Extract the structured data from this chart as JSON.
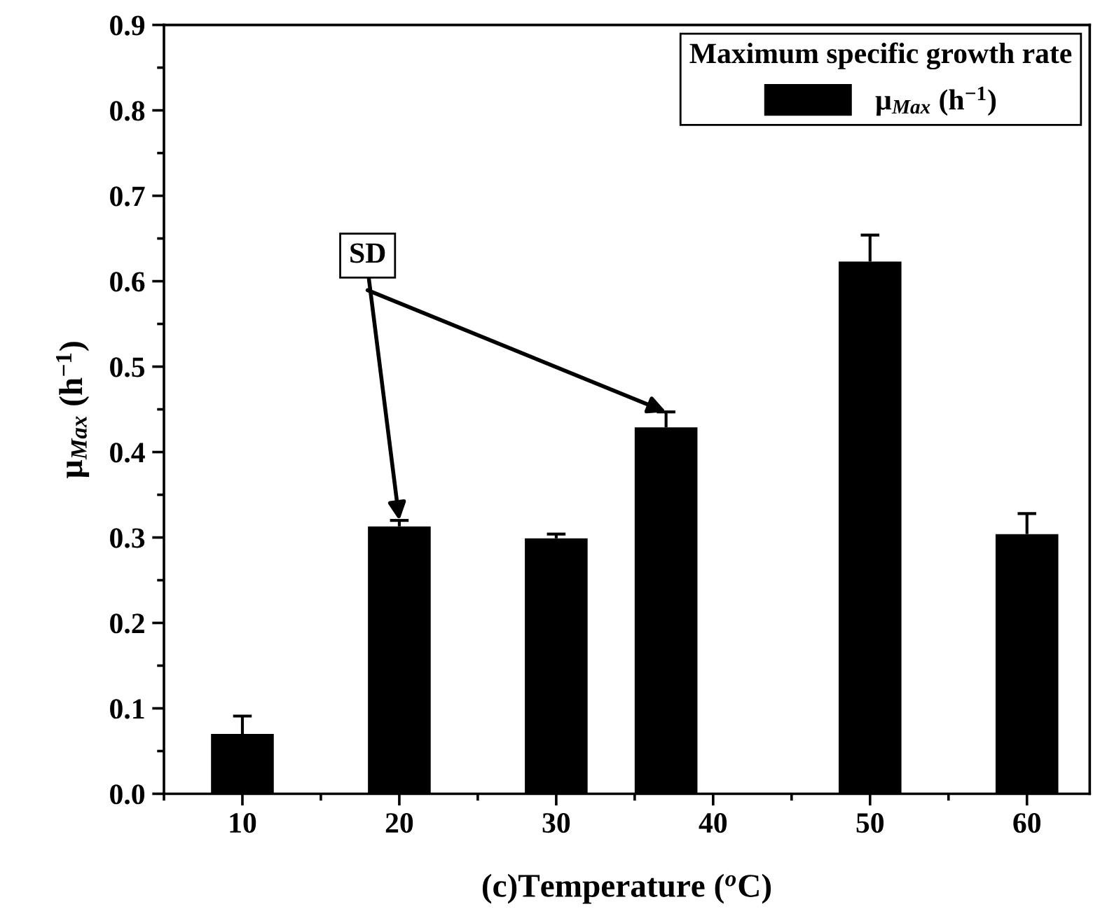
{
  "chart_data": {
    "type": "bar",
    "xlabel": "(c)Temperature ($^{o}$C)",
    "ylabel": "μ$_{Max}$ (h$^{−1}$)",
    "legend_title": "Maximum specific growth rate",
    "x": [
      10,
      20,
      30,
      37,
      50,
      60
    ],
    "series": [
      {
        "name": "μ$_{Max}$ (h$^{−1}$)",
        "color": "#000000",
        "values": [
          0.07,
          0.313,
          0.299,
          0.429,
          0.623,
          0.304
        ],
        "errors": [
          [
            0.07,
            0.091
          ],
          [
            0.313,
            0.32
          ],
          [
            0.299,
            0.304
          ],
          [
            0.429,
            0.447
          ],
          [
            0.623,
            0.654
          ],
          [
            0.304,
            0.328
          ]
        ]
      }
    ],
    "xlim": [
      5,
      64
    ],
    "xticks": [
      10,
      20,
      30,
      40,
      50,
      60
    ],
    "ylim": [
      0.0,
      0.9
    ],
    "yticks": [
      {
        "value": 0,
        "label": "0.0"
      },
      0.1,
      0.2,
      0.3,
      0.4,
      0.5,
      0.6,
      0.7,
      0.8,
      0.9
    ],
    "annotations": [
      {
        "text": "SD",
        "x": 20,
        "y": 0.32
      }
    ],
    "grid": false,
    "legend": "top right"
  }
}
